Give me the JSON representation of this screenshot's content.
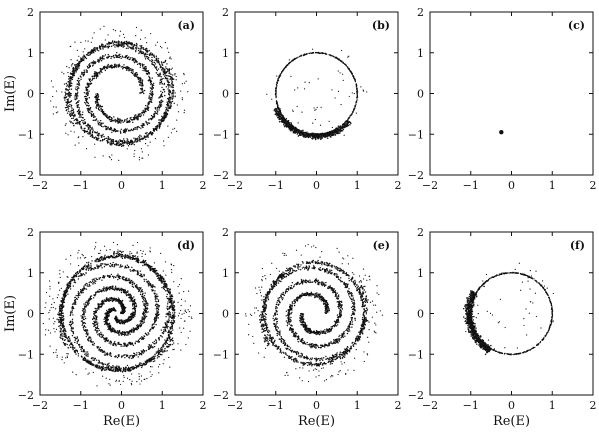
{
  "chart_data": [
    {
      "type": "scatter",
      "panel_label": "(a)",
      "xlim": [
        -2,
        2
      ],
      "ylim": [
        -2,
        2
      ],
      "xticks": [
        "−2",
        "−1",
        "0",
        "1",
        "2"
      ],
      "yticks": [
        "−2",
        "−1",
        "0",
        "1",
        "2"
      ],
      "xlabel": "",
      "ylabel": "Im(E)",
      "pattern": {
        "kind": "spiral",
        "arms": 2,
        "r_inner": 0.55,
        "r_outer": 1.35,
        "center": [
          -0.05,
          0.0
        ],
        "density": "high",
        "gap_radius": 0.5
      }
    },
    {
      "type": "scatter",
      "panel_label": "(b)",
      "xlim": [
        -2,
        2
      ],
      "ylim": [
        -2,
        2
      ],
      "xticks": [
        "−2",
        "−1",
        "0",
        "1",
        "2"
      ],
      "yticks": [
        "−2",
        "−1",
        "0",
        "1",
        "2"
      ],
      "xlabel": "",
      "ylabel": "",
      "pattern": {
        "kind": "ring",
        "radius": 1.0,
        "center": [
          0.0,
          0.0
        ],
        "thick_arc": {
          "from_deg": 200,
          "to_deg": 320,
          "width": 0.15
        },
        "density": "medium"
      }
    },
    {
      "type": "scatter",
      "panel_label": "(c)",
      "xlim": [
        -2,
        2
      ],
      "ylim": [
        -2,
        2
      ],
      "xticks": [
        "−2",
        "−1",
        "0",
        "1",
        "2"
      ],
      "yticks": [
        "−2",
        "−1",
        "0",
        "1",
        "2"
      ],
      "xlabel": "",
      "ylabel": "",
      "points": [
        {
          "x": -0.25,
          "y": -0.95
        }
      ]
    },
    {
      "type": "scatter",
      "panel_label": "(d)",
      "xlim": [
        -2,
        2
      ],
      "ylim": [
        -2,
        2
      ],
      "xticks": [
        "−2",
        "−1",
        "0",
        "1",
        "2"
      ],
      "yticks": [
        "−2",
        "−1",
        "0",
        "1",
        "2"
      ],
      "xlabel": "Re(E)",
      "ylabel": "Im(E)",
      "pattern": {
        "kind": "spiral",
        "arms": 3,
        "r_inner": 0.1,
        "r_outer": 1.5,
        "center": [
          -0.1,
          0.0
        ],
        "density": "very high"
      }
    },
    {
      "type": "scatter",
      "panel_label": "(e)",
      "xlim": [
        -2,
        2
      ],
      "ylim": [
        -2,
        2
      ],
      "xticks": [
        "−2",
        "−1",
        "0",
        "1",
        "2"
      ],
      "yticks": [
        "−2",
        "−1",
        "0",
        "1",
        "2"
      ],
      "xlabel": "Re(E)",
      "ylabel": "",
      "pattern": {
        "kind": "spiral",
        "arms": 2,
        "r_inner": 0.3,
        "r_outer": 1.35,
        "center": [
          -0.05,
          0.0
        ],
        "density": "high"
      }
    },
    {
      "type": "scatter",
      "panel_label": "(f)",
      "xlim": [
        -2,
        2
      ],
      "ylim": [
        -2,
        2
      ],
      "xticks": [
        "−2",
        "−1",
        "0",
        "1",
        "2"
      ],
      "yticks": [
        "−2",
        "−1",
        "0",
        "1",
        "2"
      ],
      "xlabel": "Re(E)",
      "ylabel": "",
      "pattern": {
        "kind": "ring",
        "radius": 1.0,
        "center": [
          0.0,
          0.0
        ],
        "thick_arc": {
          "from_deg": 150,
          "to_deg": 240,
          "width": 0.2
        },
        "density": "medium"
      }
    }
  ]
}
